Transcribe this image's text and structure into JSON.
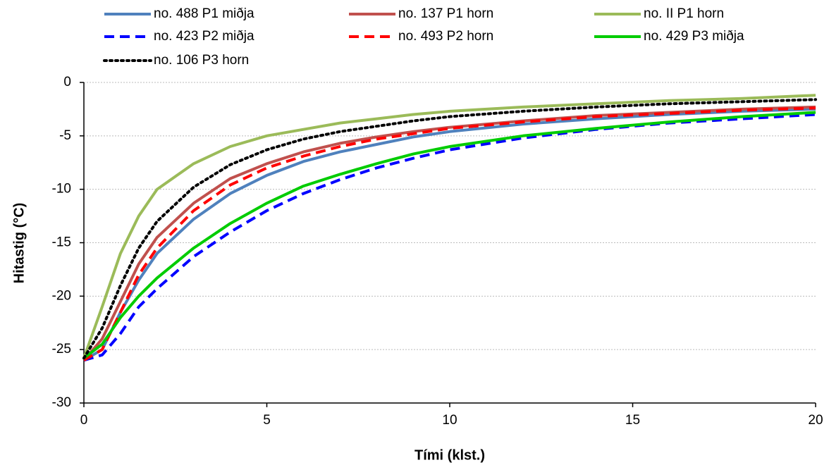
{
  "chart_data": {
    "type": "line",
    "x_label": "Tími (klst.)",
    "y_label": "Hitastig (°C)",
    "x": [
      0,
      0.5,
      1,
      1.5,
      2,
      3,
      4,
      5,
      6,
      7,
      8,
      9,
      10,
      12,
      14,
      16,
      18,
      20
    ],
    "xlim": [
      0,
      20
    ],
    "xticks": [
      0,
      5,
      10,
      15,
      20
    ],
    "ylim": [
      -30,
      0
    ],
    "yticks": [
      -30,
      -25,
      -20,
      -15,
      -10,
      -5,
      0
    ],
    "grid": true,
    "legend": "top",
    "series": [
      {
        "name": "no. 488 P1 miðja",
        "color": "#4f81bd",
        "style": "solid",
        "values": [
          -26,
          -25,
          -21.5,
          -18.5,
          -16,
          -12.8,
          -10.4,
          -8.7,
          -7.4,
          -6.5,
          -5.8,
          -5.1,
          -4.6,
          -3.9,
          -3.4,
          -3.0,
          -2.7,
          -2.5
        ]
      },
      {
        "name": "no. 137 P1 horn",
        "color": "#c0504d",
        "style": "solid",
        "values": [
          -26,
          -24,
          -20.5,
          -17,
          -14.5,
          -11.3,
          -9.0,
          -7.6,
          -6.5,
          -5.7,
          -5.1,
          -4.6,
          -4.2,
          -3.6,
          -3.1,
          -2.8,
          -2.5,
          -2.3
        ]
      },
      {
        "name": "no. II P1 horn",
        "color": "#9bbb59",
        "style": "solid",
        "values": [
          -25.8,
          -21,
          -16,
          -12.5,
          -10,
          -7.6,
          -6,
          -5,
          -4.4,
          -3.8,
          -3.4,
          -3.0,
          -2.7,
          -2.3,
          -2.0,
          -1.7,
          -1.5,
          -1.2
        ]
      },
      {
        "name": "no. 423 P2 miðja",
        "color": "#0000ff",
        "style": "dashed",
        "values": [
          -26,
          -25.5,
          -23.5,
          -21,
          -19.3,
          -16.3,
          -14,
          -12,
          -10.4,
          -9.1,
          -8.0,
          -7.1,
          -6.3,
          -5.2,
          -4.4,
          -3.8,
          -3.4,
          -3.0
        ]
      },
      {
        "name": "no. 493 P2 horn",
        "color": "#ff0000",
        "style": "dashed",
        "values": [
          -26,
          -25,
          -21.5,
          -18,
          -15.5,
          -12,
          -9.6,
          -8.0,
          -6.9,
          -6.0,
          -5.3,
          -4.8,
          -4.3,
          -3.7,
          -3.2,
          -2.9,
          -2.6,
          -2.4
        ]
      },
      {
        "name": "no. 429 P3 miðja",
        "color": "#00cc00",
        "style": "solid",
        "values": [
          -25.8,
          -24.5,
          -22,
          -20,
          -18.3,
          -15.5,
          -13.2,
          -11.3,
          -9.7,
          -8.6,
          -7.6,
          -6.7,
          -6.0,
          -5.0,
          -4.3,
          -3.7,
          -3.2,
          -2.8
        ]
      },
      {
        "name": "no. 106 P3 horn",
        "color": "#000000",
        "style": "dotted",
        "values": [
          -25.8,
          -23,
          -19,
          -15.5,
          -13,
          -9.8,
          -7.7,
          -6.3,
          -5.3,
          -4.6,
          -4.1,
          -3.6,
          -3.2,
          -2.7,
          -2.3,
          -2.0,
          -1.8,
          -1.6
        ]
      }
    ]
  }
}
